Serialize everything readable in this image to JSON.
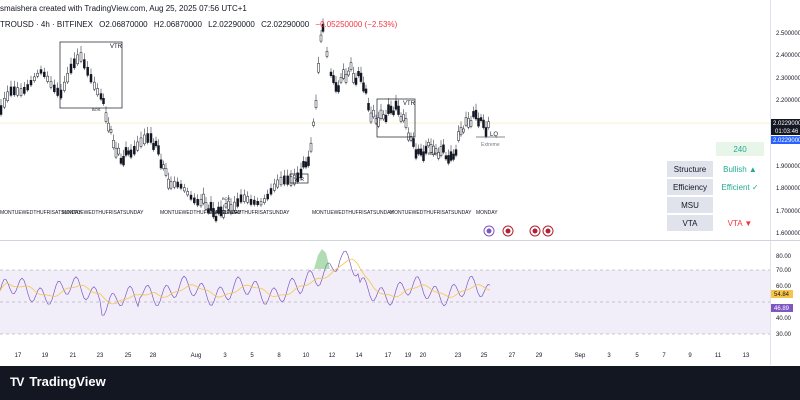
{
  "header": {
    "credit": "smaishera created with TradingView.com, Aug 25, 2025 07:56 UTC+1",
    "symbol": "TROUSD · 4h · BITFINEX",
    "open": "O2.06870000",
    "high": "H2.06870000",
    "low": "L2.02290000",
    "close": "C2.02290000",
    "change": "−0.05250000 (−2.53%)"
  },
  "price_axis": {
    "labels": [
      "2.5000000",
      "2.4000000",
      "2.3000000",
      "2.2000000",
      "1.9000000",
      "1.8000000",
      "1.7000000",
      "1.6000000"
    ],
    "current_price": "2.0229000",
    "countdown": "01:03:46",
    "secondary_price": "2.0229000"
  },
  "rsi_axis": {
    "labels": [
      "80.00",
      "70.00",
      "60.00",
      "40.00",
      "30.00"
    ],
    "ma_value": "54.84",
    "rsi_value": "46.89"
  },
  "time_axis": {
    "labels": [
      "17",
      "19",
      "21",
      "23",
      "25",
      "28",
      "Aug",
      "3",
      "5",
      "8",
      "10",
      "12",
      "14",
      "17",
      "19",
      "20",
      "23",
      "25",
      "27",
      "29",
      "Sep",
      "3",
      "5",
      "7",
      "9",
      "11",
      "13"
    ]
  },
  "annotations": {
    "vtr": "VTR",
    "bos": "BOS",
    "lq": "LQ",
    "extreme": "Extreme",
    "monday": "MONDAY",
    "day_marks": "MONTUEWEDTHUFRISATSUNDAY"
  },
  "table": {
    "timeframe": "240",
    "rows": [
      {
        "label": "Structure",
        "value": "Bullish ▲",
        "color": "#22ab94"
      },
      {
        "label": "Efficiency",
        "value": "Efficient ✓",
        "color": "#22ab94"
      },
      {
        "label": "MSU",
        "value": "",
        "color": "#131722"
      },
      {
        "label": "VTA",
        "value": "VTA ▼",
        "color": "#f23645"
      }
    ]
  },
  "footer": {
    "brand": "TradingView",
    "logo": "TV"
  },
  "colors": {
    "bull": "#131722",
    "bear": "#131722",
    "rsi_line": "#7e57c2",
    "rsi_ma": "#f7c548",
    "rsi_band": "#ede7f6",
    "up": "#22ab94",
    "down": "#f23645",
    "price_line": "#131722"
  }
}
